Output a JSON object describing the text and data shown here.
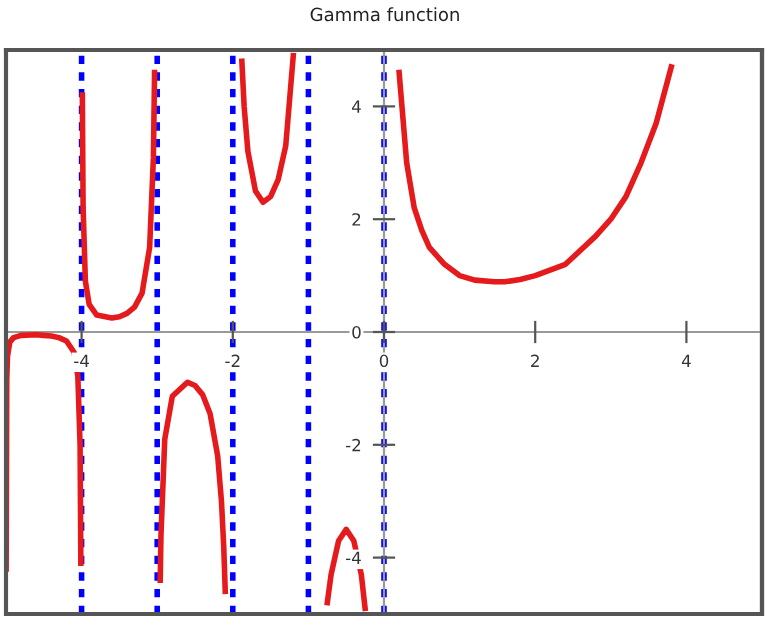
{
  "chart_data": {
    "type": "line",
    "title": "Gamma function",
    "x": [
      -4.998,
      -4.99,
      -4.98,
      -4.95,
      -4.9,
      -4.8,
      -4.6,
      -4.5,
      -4.4,
      -4.3,
      -4.2,
      -4.1,
      -4.05,
      -4.02,
      -4.01,
      null,
      -3.99,
      -3.98,
      -3.95,
      -3.9,
      -3.8,
      -3.6,
      -3.5,
      -3.4,
      -3.3,
      -3.2,
      -3.1,
      -3.05,
      -3.035,
      null,
      -2.96,
      -2.95,
      -2.9,
      -2.8,
      -2.6,
      -2.5,
      -2.4,
      -2.3,
      -2.2,
      -2.15,
      -2.12,
      -2.1,
      null,
      -1.88,
      -1.85,
      -1.8,
      -1.7,
      -1.6,
      -1.5,
      -1.4,
      -1.3,
      -1.2,
      null,
      -0.75,
      -0.7,
      -0.6,
      -0.5,
      -0.4,
      -0.3,
      -0.25,
      null,
      0.2,
      0.3,
      0.4,
      0.5,
      0.6,
      0.8,
      1,
      1.2,
      1.46,
      1.6,
      1.8,
      2,
      2.4,
      2.8,
      3,
      3.2,
      3.4,
      3.6,
      3.8
    ],
    "series": [
      {
        "color": "#e41a1c",
        "values": [
          -4.2,
          -0.85,
          -0.43,
          -0.18,
          -0.1,
          -0.06,
          -0.05,
          -0.06,
          -0.07,
          -0.1,
          -0.16,
          -0.36,
          -0.78,
          -2.0,
          -4.1,
          null,
          4.2,
          2.2,
          0.9,
          0.49,
          0.3,
          0.25,
          0.27,
          0.33,
          0.44,
          0.69,
          1.5,
          3.1,
          4.6,
          null,
          -4.4,
          -3.6,
          -1.9,
          -1.14,
          -0.89,
          -0.95,
          -1.11,
          -1.45,
          -2.2,
          -3.0,
          -3.8,
          -4.6,
          null,
          4.8,
          4.0,
          3.2,
          2.5,
          2.3,
          2.4,
          2.7,
          3.3,
          4.9,
          null,
          -4.8,
          -4.3,
          -3.7,
          -3.5,
          -3.7,
          -4.3,
          -4.9,
          null,
          4.6,
          3.0,
          2.2,
          1.8,
          1.5,
          1.2,
          1.0,
          0.92,
          0.89,
          0.89,
          0.93,
          1.0,
          1.2,
          1.7,
          2.0,
          2.4,
          3.0,
          3.7,
          4.7
        ]
      }
    ],
    "xlim": [
      -5,
      5
    ],
    "ylim": [
      -5,
      5
    ],
    "xticks": [
      -4,
      -2,
      0,
      2,
      4
    ],
    "yticks": [
      -4,
      -2,
      0,
      2,
      4
    ],
    "grid": false,
    "line_style": "solid",
    "marker": "none",
    "ref_lines": [
      {
        "axis": "x",
        "value": -4,
        "color": "#0000ff",
        "line_style": "dotted"
      },
      {
        "axis": "x",
        "value": -3,
        "color": "#0000ff",
        "line_style": "dotted"
      },
      {
        "axis": "x",
        "value": -2,
        "color": "#0000ff",
        "line_style": "dotted"
      },
      {
        "axis": "x",
        "value": -1,
        "color": "#0000ff",
        "line_style": "dotted"
      },
      {
        "axis": "x",
        "value": 0,
        "color": "#0000ff",
        "line_style": "dotted"
      }
    ]
  }
}
